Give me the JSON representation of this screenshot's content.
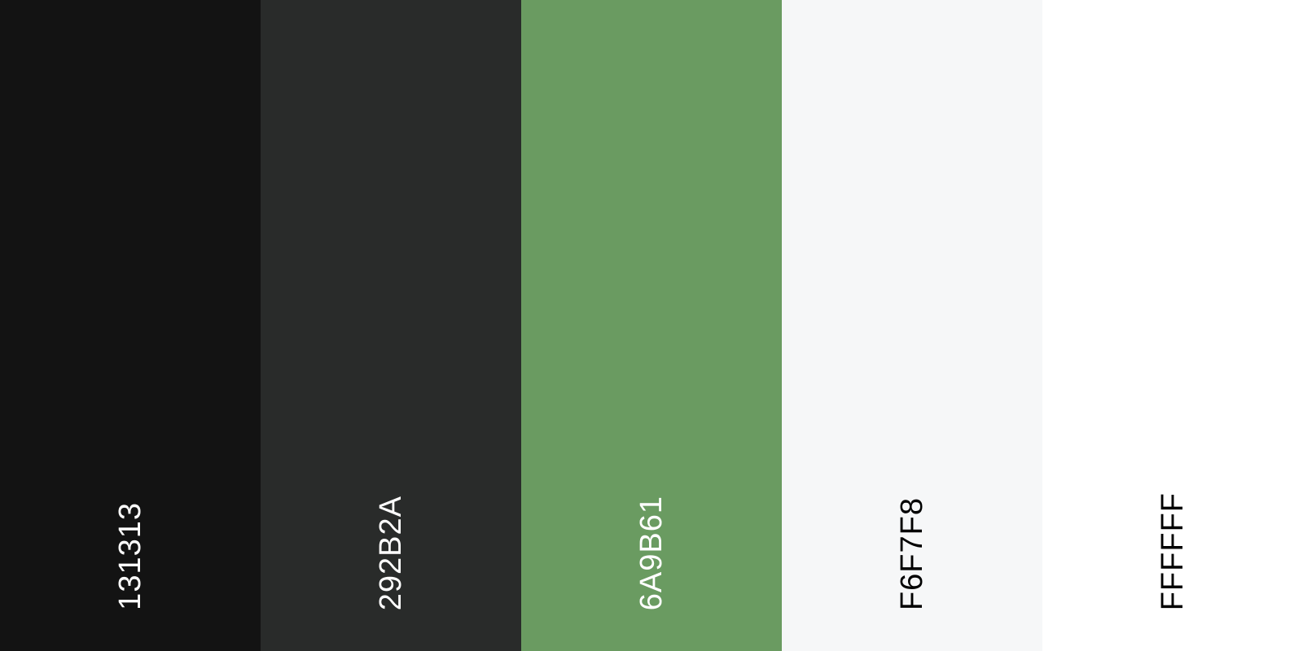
{
  "swatches": [
    {
      "hex": "131313",
      "color": "#131313",
      "text_color": "#FFFFFF"
    },
    {
      "hex": "292B2A",
      "color": "#292B2A",
      "text_color": "#FFFFFF"
    },
    {
      "hex": "6A9B61",
      "color": "#6A9B61",
      "text_color": "#FFFFFF"
    },
    {
      "hex": "F6F7F8",
      "color": "#F6F7F8",
      "text_color": "#000000"
    },
    {
      "hex": "FFFFFF",
      "color": "#FFFFFF",
      "text_color": "#000000"
    }
  ]
}
